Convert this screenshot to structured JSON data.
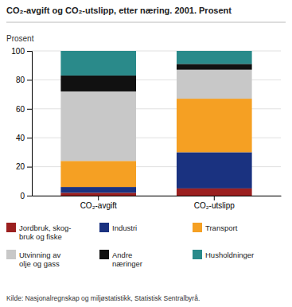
{
  "chart_data": {
    "type": "bar",
    "stacked": true,
    "title": "CO₂-avgift og CO₂-utslipp, etter næring. 2001. Prosent",
    "y_label": "Prosent",
    "source": "Kilde: Nasjonalregnskap og miljøstatistikk, Statistisk Sentralbyrå.",
    "categories": [
      "CO₂-avgift",
      "CO₂-utslipp"
    ],
    "series": [
      {
        "name": "Jordbruk, skog-\nbruk og fiske",
        "color": "#9b2020",
        "values": [
          2,
          5
        ]
      },
      {
        "name": "Industri",
        "color": "#1a3280",
        "values": [
          4,
          25
        ]
      },
      {
        "name": "Transport",
        "color": "#f5a023",
        "values": [
          18,
          37
        ]
      },
      {
        "name": "Utvinning av\nolje og gass",
        "color": "#c8c8c8",
        "values": [
          48,
          20
        ]
      },
      {
        "name": "Andre\nnæringer",
        "color": "#111111",
        "values": [
          11,
          4
        ]
      },
      {
        "name": "Husholdninger",
        "color": "#2a8a8a",
        "values": [
          17,
          9
        ]
      }
    ],
    "ylim": [
      0,
      100
    ],
    "yticks": [
      0,
      20,
      40,
      60,
      80,
      100
    ],
    "grid": true,
    "legend": "bottom"
  }
}
